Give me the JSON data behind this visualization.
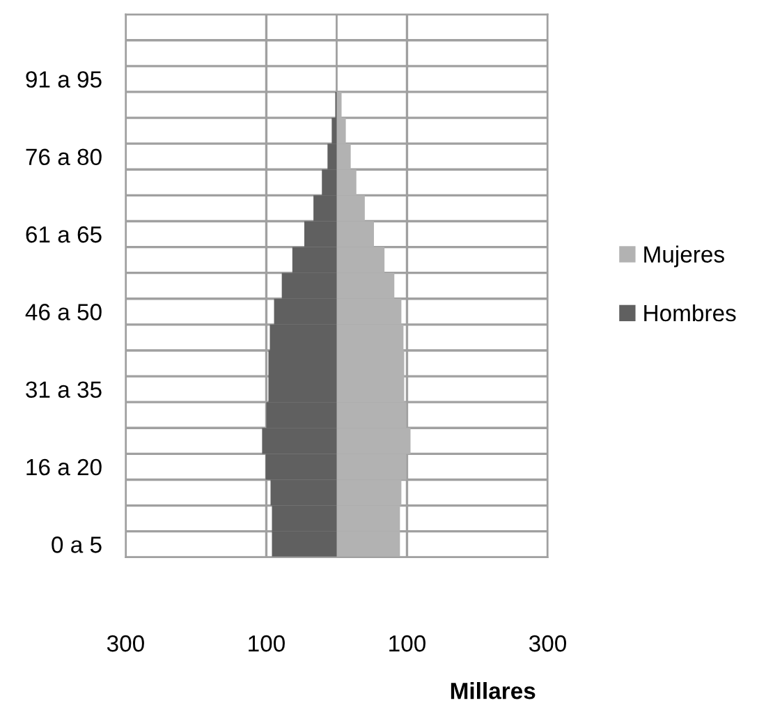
{
  "chart_data": {
    "type": "bar",
    "orientation": "horizontal",
    "xlabel": "Millares",
    "categories": [
      null,
      null,
      "91 a 95",
      null,
      null,
      "76 a 80",
      null,
      null,
      "61 a 65",
      null,
      null,
      "46 a 50",
      null,
      null,
      "31 a 35",
      null,
      null,
      "16 a 20",
      null,
      null,
      "0 a 5"
    ],
    "series": [
      {
        "name": "Mujeres",
        "color": "#b2b2b2",
        "values": [
          0,
          0,
          0,
          7,
          13,
          20,
          28,
          40,
          53,
          68,
          82,
          92,
          95,
          96,
          96,
          99,
          105,
          99,
          92,
          90,
          90
        ]
      },
      {
        "name": "Hombres",
        "color": "#606060",
        "values": [
          0,
          0,
          0,
          -2,
          -7,
          -13,
          -21,
          -33,
          -46,
          -63,
          -78,
          -89,
          -95,
          -97,
          -97,
          -100,
          -106,
          -101,
          -94,
          -92,
          -92
        ]
      }
    ],
    "xlim": [
      -300,
      300
    ],
    "xticks": [
      {
        "value": -300,
        "label": "300"
      },
      {
        "value": -100,
        "label": "100"
      },
      100,
      300
    ],
    "stacked": true,
    "grid": true,
    "legend": "right"
  }
}
